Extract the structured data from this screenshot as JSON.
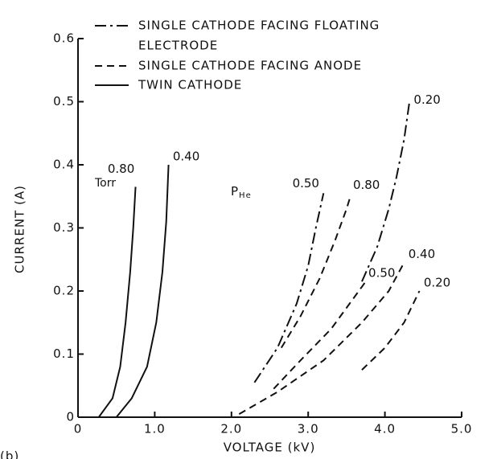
{
  "chart_data": {
    "type": "line",
    "panel": "(b)",
    "xlabel": "VOLTAGE (kV)",
    "ylabel": "CURRENT (A)",
    "xlim": [
      0,
      5
    ],
    "ylim": [
      0,
      0.6
    ],
    "xticks": [
      0,
      {
        "value": 1,
        "label": "1.0"
      },
      {
        "value": 2,
        "label": "2.0"
      },
      {
        "value": 3,
        "label": "3.0"
      },
      {
        "value": 4,
        "label": "4.0"
      },
      {
        "value": 5,
        "label": "5.0"
      }
    ],
    "yticks": [
      0,
      0.1,
      0.2,
      0.3,
      0.4,
      0.5,
      0.6
    ],
    "unit_label": "Torr",
    "pressure_symbol": "P",
    "pressure_subscript": "He",
    "color": "#111111",
    "legend": [
      {
        "label": [
          "SINGLE CATHODE FACING FLOATING",
          "ELECTRODE"
        ],
        "style": "dashdot"
      },
      {
        "label": [
          "SINGLE CATHODE FACING ANODE"
        ],
        "style": "dashed"
      },
      {
        "label": [
          "TWIN CATHODE"
        ],
        "style": "solid"
      }
    ],
    "series": [
      {
        "name": "0.80",
        "legend": 2,
        "x": [
          0.27,
          0.45,
          0.55,
          0.62,
          0.68,
          0.72,
          0.75
        ],
        "values": [
          0,
          0.03,
          0.08,
          0.15,
          0.23,
          0.3,
          0.365
        ]
      },
      {
        "name": "0.40",
        "legend": 2,
        "x": [
          0.5,
          0.7,
          0.9,
          1.02,
          1.1,
          1.15,
          1.18
        ],
        "values": [
          0,
          0.03,
          0.08,
          0.15,
          0.23,
          0.31,
          0.4
        ]
      },
      {
        "name": "0.50",
        "legend": 0,
        "x": [
          2.3,
          2.6,
          2.85,
          3.0,
          3.1,
          3.2
        ],
        "values": [
          0.055,
          0.11,
          0.18,
          0.24,
          0.3,
          0.355
        ]
      },
      {
        "name": "0.20",
        "legend": 0,
        "x": [
          3.7,
          3.9,
          4.05,
          4.15,
          4.25,
          4.32
        ],
        "values": [
          0.215,
          0.27,
          0.33,
          0.38,
          0.44,
          0.5
        ]
      },
      {
        "name": "0.80",
        "legend": 1,
        "x": [
          2.65,
          2.9,
          3.15,
          3.35,
          3.5,
          3.55
        ],
        "values": [
          0.11,
          0.16,
          0.22,
          0.28,
          0.33,
          0.35
        ]
      },
      {
        "name": "0.50",
        "legend": 1,
        "x": [
          2.55,
          2.9,
          3.3,
          3.6,
          3.75
        ],
        "values": [
          0.045,
          0.09,
          0.14,
          0.19,
          0.215
        ]
      },
      {
        "name": "0.40",
        "legend": 1,
        "x": [
          2.1,
          2.6,
          3.2,
          3.7,
          4.05,
          4.25
        ],
        "values": [
          0.005,
          0.04,
          0.09,
          0.15,
          0.2,
          0.245
        ]
      },
      {
        "name": "0.20",
        "legend": 1,
        "x": [
          3.7,
          4.0,
          4.25,
          4.45
        ],
        "values": [
          0.075,
          0.11,
          0.15,
          0.2
        ]
      }
    ]
  }
}
